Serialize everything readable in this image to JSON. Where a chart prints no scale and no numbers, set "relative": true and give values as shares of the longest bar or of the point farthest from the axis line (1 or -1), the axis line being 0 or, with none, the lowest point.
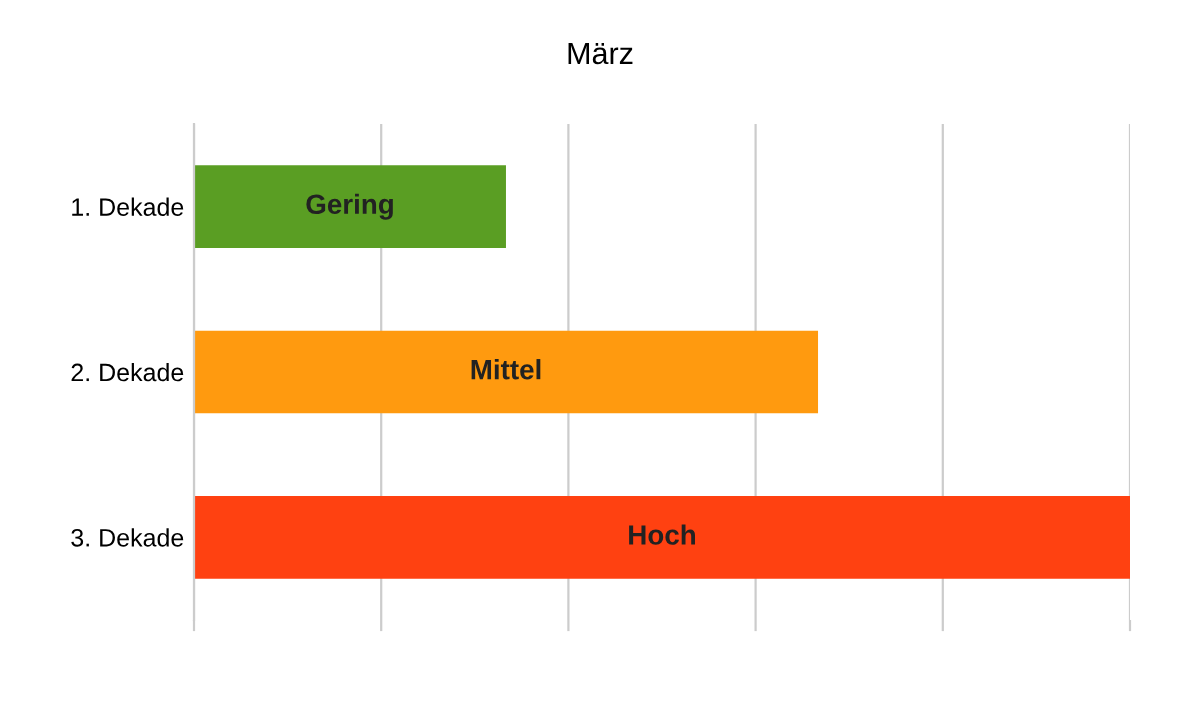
{
  "chart_data": {
    "type": "bar",
    "orientation": "horizontal",
    "title": "März",
    "relative": true,
    "categories": [
      "1. Dekade",
      "2. Dekade",
      "3. Dekade"
    ],
    "values": [
      0.3333,
      0.6667,
      1
    ],
    "colors": [
      "#5a9e23",
      "#ff9a0f",
      "#ff4111"
    ],
    "annotations": [
      "Gering",
      "Mittel",
      "Hoch"
    ],
    "grid": "x"
  }
}
